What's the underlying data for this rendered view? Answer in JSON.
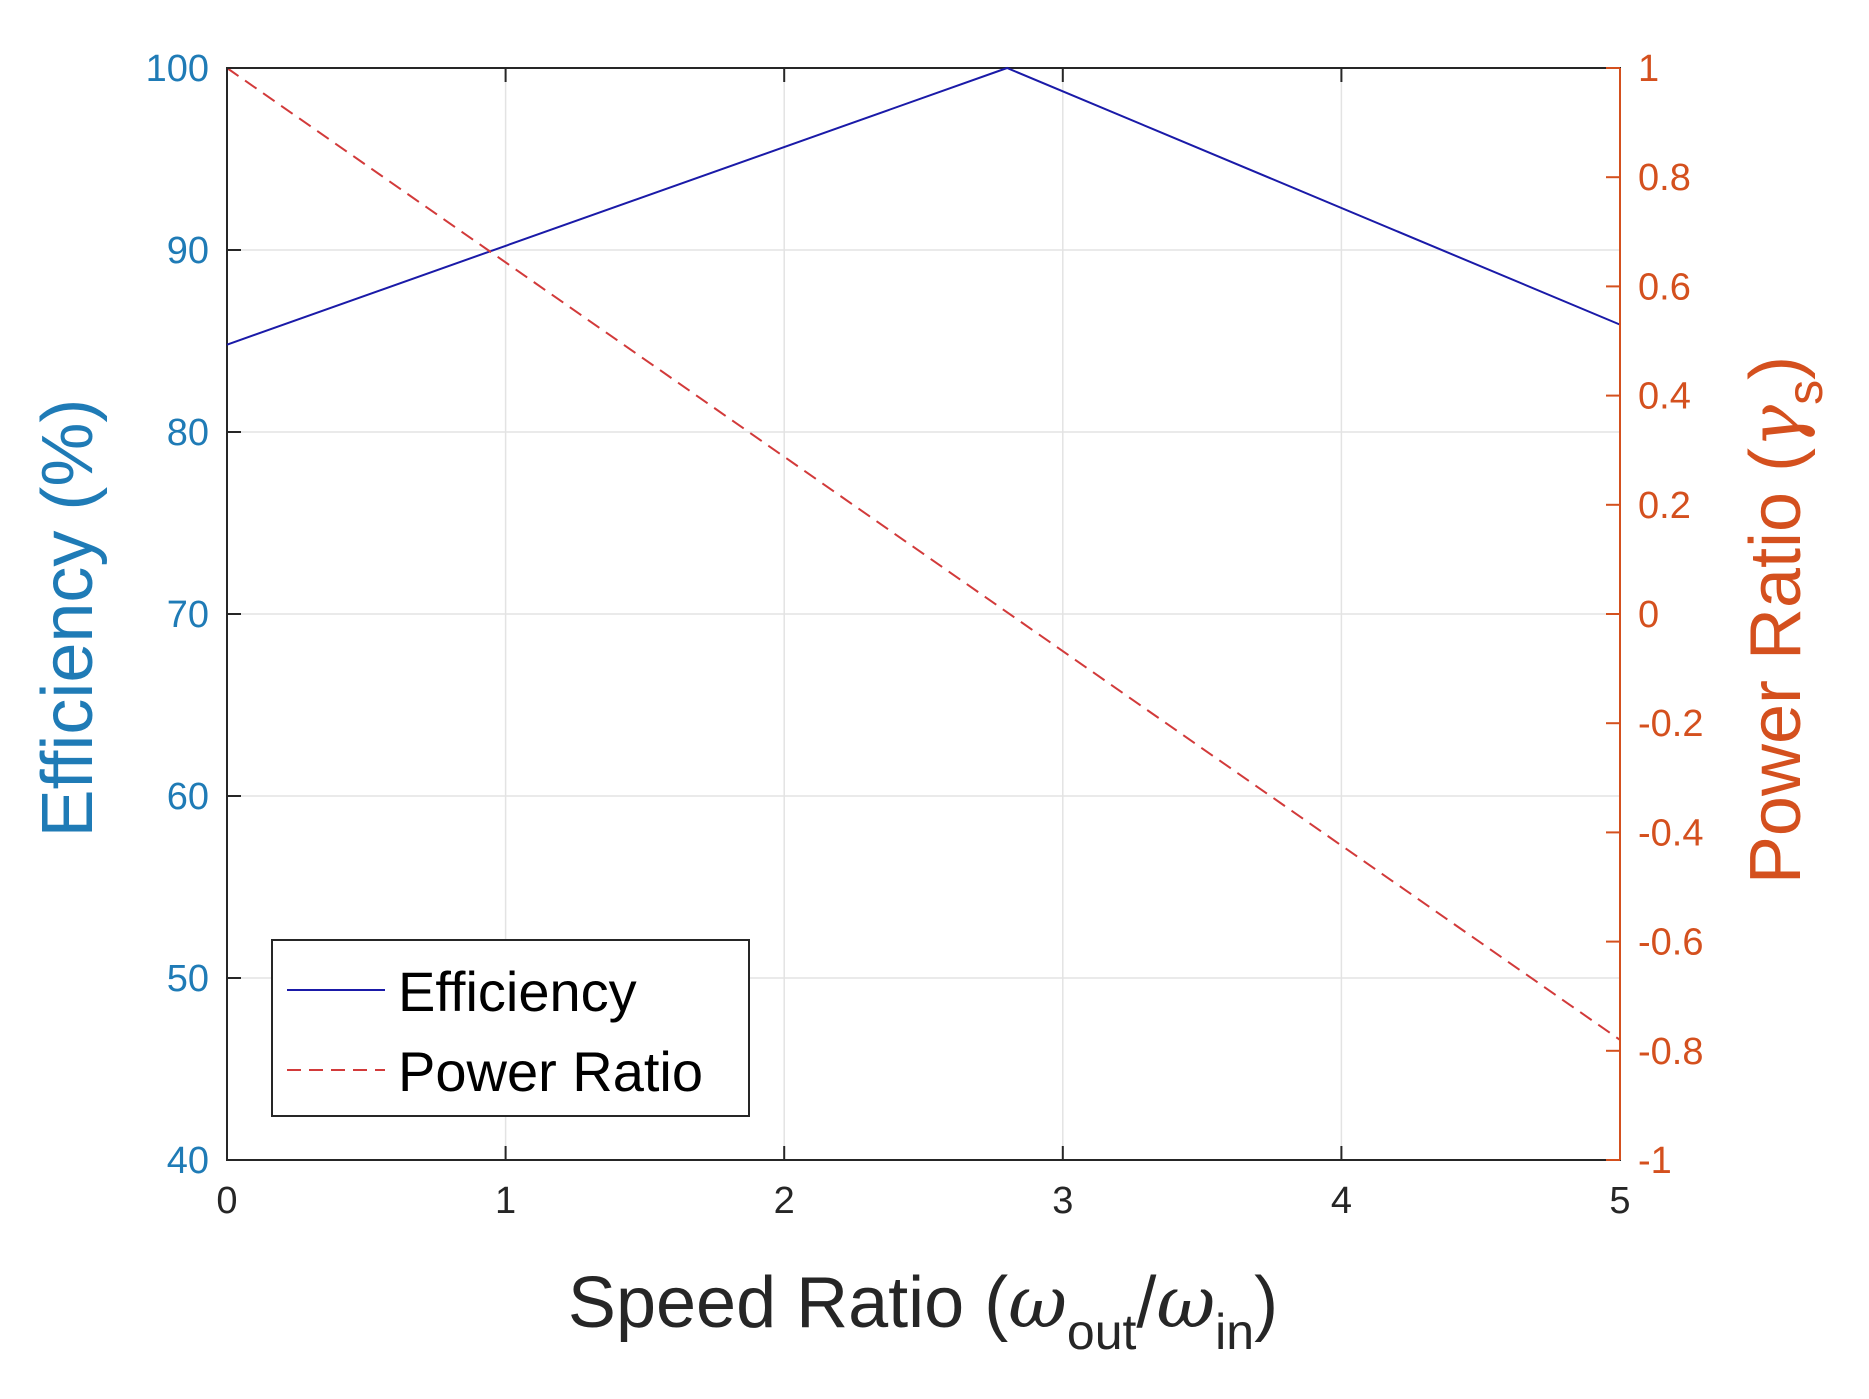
{
  "chart_data": {
    "type": "line",
    "x_axis": {
      "label_main": "Speed Ratio (",
      "omega": "ω",
      "sub_out": "out",
      "slash": "/",
      "sub_in": "in",
      "close": ")",
      "range": [
        0,
        5
      ],
      "ticks": [
        0,
        1,
        2,
        3,
        4,
        5
      ]
    },
    "y_left": {
      "label": "Efficiency (%)",
      "range": [
        40,
        100
      ],
      "ticks": [
        40,
        50,
        60,
        70,
        80,
        90,
        100
      ],
      "color": "#1f7bb6"
    },
    "y_right": {
      "label_main": "Power Ratio (",
      "gamma": "γ",
      "sub": "s",
      "close": ")",
      "range": [
        -1,
        1
      ],
      "ticks": [
        -1,
        -0.8,
        -0.6,
        -0.4,
        -0.2,
        0,
        0.2,
        0.4,
        0.6,
        0.8,
        1
      ],
      "tick_labels": [
        "-1",
        "-0.8",
        "-0.6",
        "-0.4",
        "-0.2",
        "0",
        "0.2",
        "0.4",
        "0.6",
        "0.8",
        "1"
      ],
      "color": "#d4501e"
    },
    "series": [
      {
        "name": "Efficiency",
        "axis": "left",
        "style": "solid",
        "color": "#1a1aa8",
        "x": [
          0,
          2.8,
          5
        ],
        "y": [
          84.8,
          100,
          85.9
        ]
      },
      {
        "name": "Power Ratio",
        "axis": "right",
        "style": "dashed",
        "color": "#d23a3a",
        "x": [
          0,
          5
        ],
        "y": [
          1,
          -0.78
        ]
      }
    ],
    "legend": {
      "position": "bottom-left",
      "entries": [
        "Efficiency",
        "Power Ratio"
      ]
    },
    "grid": true
  }
}
